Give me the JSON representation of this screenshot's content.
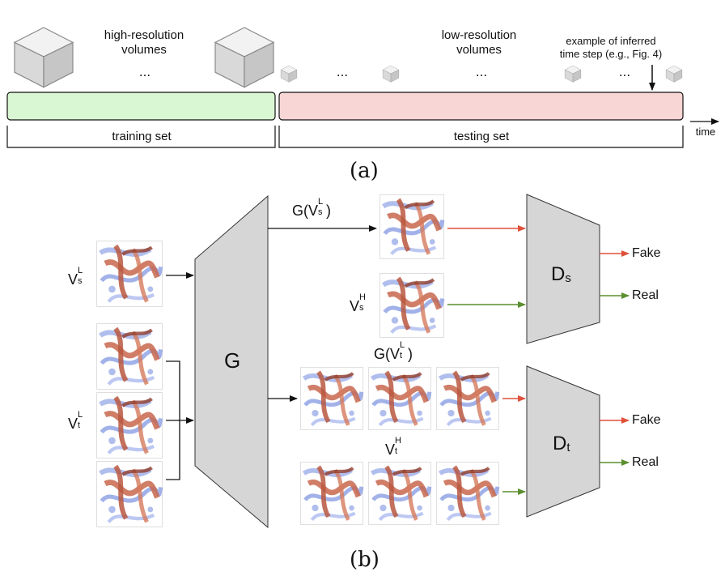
{
  "panel_a": {
    "hr_volumes_label": "high-resolution\nvolumes",
    "hr_dots": "...",
    "lr_volumes_label": "low-resolution\nvolumes",
    "lr_dots": "...",
    "lr_dots_small_1": "...",
    "lr_dots_small_2": "...",
    "example_label": "example of inferred\ntime step (e.g., Fig. 4)",
    "training_label": "training set",
    "testing_label": "testing set",
    "time_label": "time",
    "caption": "(a)",
    "colors": {
      "training_bar": "#d9f7d2",
      "testing_bar": "#f9d6d6"
    }
  },
  "panel_b": {
    "generator_label": "G",
    "ds_label": "D",
    "ds_sub": "s",
    "dt_label": "D",
    "dt_sub": "t",
    "gvs_label": "G(V",
    "gvs_sup": "L",
    "gvs_sub": "s",
    "gvt_label": "G(V",
    "gvt_sup": "L",
    "gvt_sub": "t",
    "vsl_base": "V",
    "vsl_sup": "L",
    "vsl_sub": "s",
    "vtl_base": "V",
    "vtl_sup": "L",
    "vtl_sub": "t",
    "vsh_base": "V",
    "vsh_sup": "H",
    "vsh_sub": "s",
    "vth_base": "V",
    "vth_sup": "H",
    "vth_sub": "t",
    "fake_s": "Fake",
    "real_s": "Real",
    "fake_t": "Fake",
    "real_t": "Real",
    "caption": "(b)",
    "colors": {
      "fake_arrow": "#e0503a",
      "real_arrow": "#5a8f2e",
      "box_fill": "#d6d6d6"
    }
  }
}
